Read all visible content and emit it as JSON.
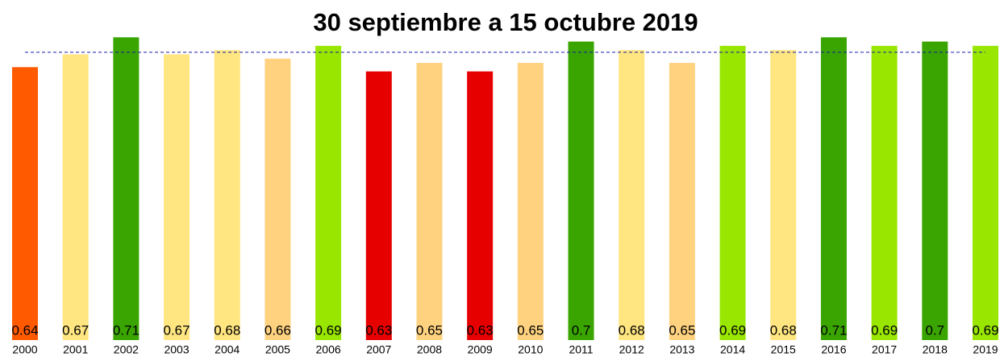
{
  "chart_data": {
    "type": "bar",
    "title": "30 septiembre a 15 octubre 2019",
    "categories": [
      "2000",
      "2001",
      "2002",
      "2003",
      "2004",
      "2005",
      "2006",
      "2007",
      "2008",
      "2009",
      "2010",
      "2011",
      "2012",
      "2013",
      "2014",
      "2015",
      "2016",
      "2017",
      "2018",
      "2019"
    ],
    "values": [
      0.64,
      0.67,
      0.71,
      0.67,
      0.68,
      0.66,
      0.69,
      0.63,
      0.65,
      0.63,
      0.65,
      0.7,
      0.68,
      0.65,
      0.69,
      0.68,
      0.71,
      0.69,
      0.7,
      0.69
    ],
    "colors": [
      "#ff5a00",
      "#ffe680",
      "#3aa500",
      "#ffe680",
      "#ffe680",
      "#ffd280",
      "#99e600",
      "#e60000",
      "#ffd280",
      "#e60000",
      "#ffd280",
      "#3aa500",
      "#ffe680",
      "#ffd280",
      "#99e600",
      "#ffe680",
      "#3aa500",
      "#99e600",
      "#3aa500",
      "#99e600"
    ],
    "ylim": [
      0,
      0.72
    ],
    "mean_line": 0.675,
    "mean_line_color": "#1a1aa6"
  }
}
